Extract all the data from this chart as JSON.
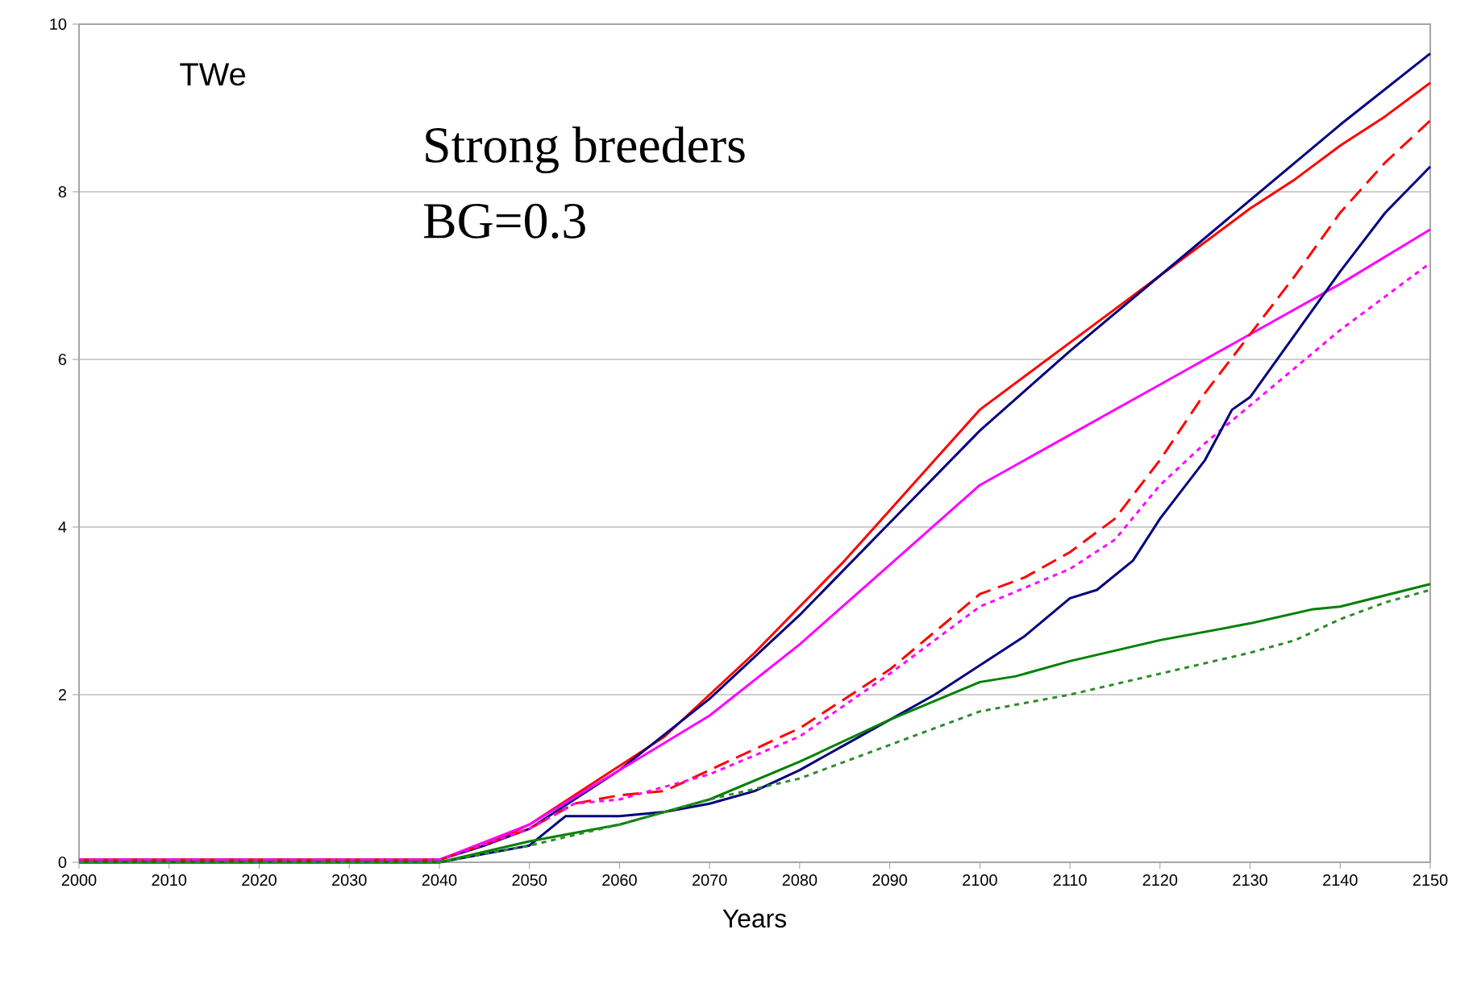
{
  "chart_data": {
    "type": "line",
    "xlabel": "Years",
    "annotations": [
      "TWe",
      "Strong breeders",
      "BG=0.3"
    ],
    "xlim": [
      2000,
      2150
    ],
    "ylim": [
      0,
      10
    ],
    "xticks": [
      2000,
      2010,
      2020,
      2030,
      2040,
      2050,
      2060,
      2070,
      2080,
      2090,
      2100,
      2110,
      2120,
      2130,
      2140,
      2150
    ],
    "yticks": [
      0,
      2,
      4,
      6,
      8,
      10
    ],
    "grid": "y",
    "marker": "none",
    "series": [
      {
        "color": "#ff0000",
        "line_style": "solid",
        "x": [
          2000,
          2040,
          2045,
          2050,
          2055,
          2060,
          2065,
          2070,
          2075,
          2080,
          2085,
          2090,
          2095,
          2100,
          2105,
          2110,
          2115,
          2120,
          2125,
          2130,
          2135,
          2140,
          2145,
          2150
        ],
        "values": [
          0.03,
          0.03,
          0.2,
          0.45,
          0.8,
          1.15,
          1.5,
          2.0,
          2.5,
          3.05,
          3.6,
          4.2,
          4.8,
          5.4,
          5.8,
          6.2,
          6.6,
          7.0,
          7.4,
          7.8,
          8.15,
          8.55,
          8.9,
          9.3
        ]
      },
      {
        "color": "#000080",
        "line_style": "solid",
        "x": [
          2000,
          2040,
          2045,
          2050,
          2060,
          2070,
          2080,
          2090,
          2100,
          2110,
          2120,
          2130,
          2140,
          2150
        ],
        "values": [
          0.03,
          0.03,
          0.2,
          0.4,
          1.1,
          1.95,
          2.95,
          4.05,
          5.15,
          6.1,
          7.0,
          7.9,
          8.8,
          9.65
        ]
      },
      {
        "color": "#ff00ff",
        "line_style": "solid",
        "x": [
          2000,
          2040,
          2050,
          2060,
          2070,
          2080,
          2090,
          2100,
          2110,
          2120,
          2130,
          2140,
          2150
        ],
        "values": [
          0.03,
          0.03,
          0.45,
          1.1,
          1.75,
          2.6,
          3.55,
          4.5,
          5.1,
          5.7,
          6.3,
          6.9,
          7.55
        ]
      },
      {
        "color": "#ff0000",
        "line_style": "dashed",
        "x": [
          2000,
          2040,
          2050,
          2055,
          2060,
          2065,
          2070,
          2075,
          2080,
          2085,
          2090,
          2095,
          2100,
          2105,
          2110,
          2115,
          2120,
          2125,
          2130,
          2135,
          2140,
          2145,
          2150
        ],
        "values": [
          0.03,
          0.03,
          0.4,
          0.7,
          0.8,
          0.85,
          1.1,
          1.35,
          1.6,
          1.95,
          2.3,
          2.75,
          3.2,
          3.4,
          3.7,
          4.1,
          4.8,
          5.6,
          6.3,
          7.0,
          7.75,
          8.35,
          8.85
        ]
      },
      {
        "color": "#ff00ff",
        "line_style": "dotted",
        "x": [
          2000,
          2040,
          2050,
          2055,
          2060,
          2070,
          2080,
          2090,
          2100,
          2110,
          2115,
          2120,
          2125,
          2130,
          2140,
          2150
        ],
        "values": [
          0.03,
          0.03,
          0.4,
          0.7,
          0.75,
          1.05,
          1.5,
          2.25,
          3.05,
          3.5,
          3.85,
          4.5,
          5.0,
          5.45,
          6.35,
          7.15
        ]
      },
      {
        "color": "#000080",
        "line_style": "solid",
        "x": [
          2000,
          2040,
          2045,
          2050,
          2054,
          2060,
          2065,
          2070,
          2075,
          2080,
          2085,
          2090,
          2095,
          2100,
          2105,
          2110,
          2113,
          2117,
          2120,
          2125,
          2128,
          2130,
          2135,
          2140,
          2145,
          2150
        ],
        "values": [
          0,
          0,
          0.1,
          0.2,
          0.55,
          0.55,
          0.6,
          0.7,
          0.85,
          1.1,
          1.4,
          1.7,
          2.0,
          2.35,
          2.7,
          3.15,
          3.25,
          3.6,
          4.1,
          4.8,
          5.4,
          5.55,
          6.3,
          7.05,
          7.75,
          8.3
        ]
      },
      {
        "color": "#008000",
        "line_style": "solid",
        "x": [
          2000,
          2040,
          2050,
          2060,
          2070,
          2080,
          2090,
          2100,
          2104,
          2110,
          2120,
          2130,
          2137,
          2140,
          2150
        ],
        "values": [
          0,
          0,
          0.25,
          0.45,
          0.75,
          1.2,
          1.7,
          2.15,
          2.22,
          2.4,
          2.65,
          2.85,
          3.02,
          3.05,
          3.32
        ]
      },
      {
        "color": "#2e8b2e",
        "line_style": "dotted",
        "x": [
          2000,
          2040,
          2050,
          2060,
          2070,
          2080,
          2090,
          2100,
          2110,
          2120,
          2130,
          2135,
          2140,
          2145,
          2150
        ],
        "values": [
          0,
          0,
          0.2,
          0.45,
          0.75,
          1.0,
          1.4,
          1.8,
          2.0,
          2.25,
          2.5,
          2.65,
          2.9,
          3.1,
          3.25
        ]
      }
    ]
  }
}
